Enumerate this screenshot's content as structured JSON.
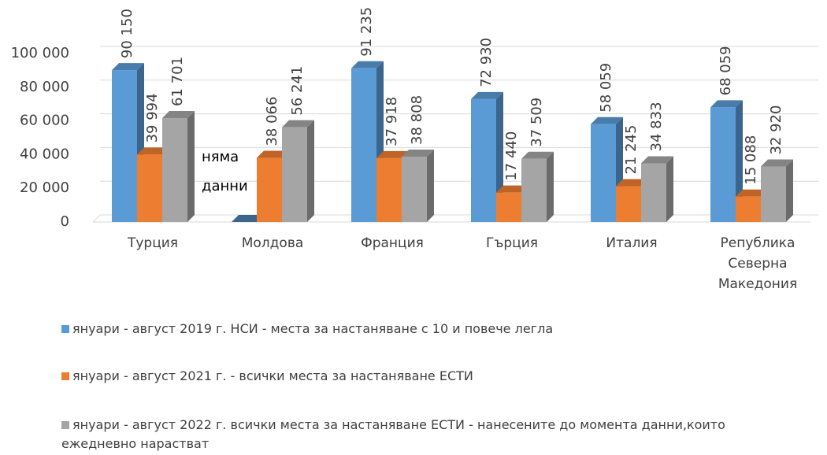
{
  "chart_data": {
    "type": "bar3d",
    "categories": [
      "Турция",
      "Молдова",
      "Франция",
      "Гърция",
      "Италия",
      "Република Северна Македония"
    ],
    "series": [
      {
        "name": "януари - август 2019 г.  НСИ - места за настаняване с 10 и повече легла",
        "color": "#5b9bd5",
        "values": [
          90150,
          null,
          91235,
          72930,
          58059,
          68059
        ],
        "value_labels": [
          "90 150",
          null,
          "91 235",
          "72 930",
          "58 059",
          "68 059"
        ]
      },
      {
        "name": "януари - август 2021  г. -  всички места за настаняване ЕСТИ",
        "color": "#ed7d31",
        "values": [
          39994,
          38066,
          37918,
          17440,
          21245,
          15088
        ],
        "value_labels": [
          "39 994",
          "38 066",
          "37 918",
          "17 440",
          "21 245",
          "15 088"
        ]
      },
      {
        "name": "януари - август 2022 г.  всички места за настаняване ЕСТИ  - нанесените до момента данни,които ежедневно нарастват",
        "color": "#a5a5a5",
        "values": [
          61701,
          56241,
          38808,
          37509,
          34833,
          32920
        ],
        "value_labels": [
          "61 701",
          "56 241",
          "38 808",
          "37 509",
          "34 833",
          "32 920"
        ]
      }
    ],
    "annotation": "няма данни",
    "ylim": [
      0,
      100000
    ],
    "yticks": [
      0,
      {
        "value": 20000,
        "label": "20 000"
      },
      {
        "value": 40000,
        "label": "40 000"
      },
      {
        "value": 60000,
        "label": "60 000"
      },
      {
        "value": 80000,
        "label": "80 000"
      },
      {
        "value": 100000,
        "label": "100 000"
      }
    ],
    "grid": true
  }
}
